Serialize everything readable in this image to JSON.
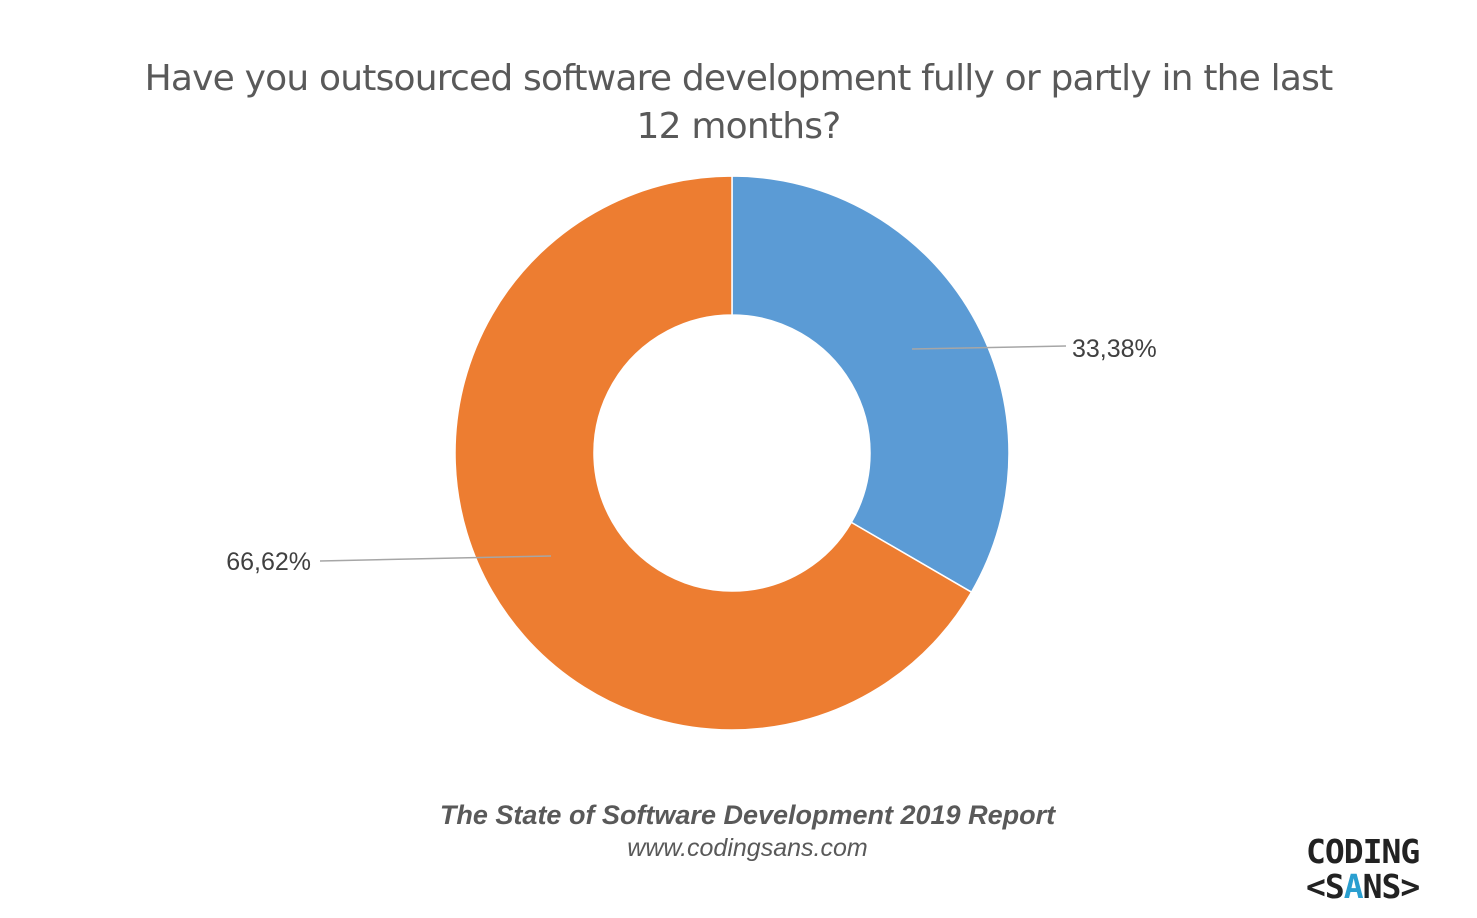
{
  "chart_data": {
    "type": "donut",
    "title_lines": [
      "Have you outsourced software development fully or partly in the last",
      "12 months?"
    ],
    "slices": [
      {
        "label": "33,38%",
        "value": 33.38,
        "color": "#5B9BD5"
      },
      {
        "label": "66,62%",
        "value": 66.62,
        "color": "#ED7D31"
      }
    ],
    "legend": "none"
  },
  "footer": {
    "source": "The State of Software Development 2019 Report",
    "url": "www.codingsans.com"
  },
  "logo": {
    "line1": "CODING",
    "line2": "<SANS>"
  }
}
